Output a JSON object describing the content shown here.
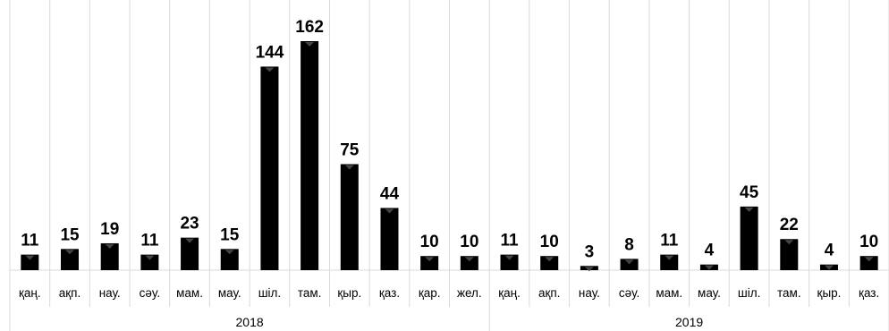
{
  "chart_data": {
    "type": "bar",
    "title": "",
    "xlabel": "",
    "ylabel": "",
    "grid": "vertical",
    "groups": [
      {
        "name": "2018",
        "categories": [
          "қаң.",
          "ақп.",
          "нау.",
          "сәу.",
          "мам.",
          "мау.",
          "шіл.",
          "там.",
          "қыр.",
          "қаз.",
          "қар.",
          "жел."
        ],
        "values": [
          11,
          15,
          19,
          11,
          23,
          15,
          144,
          162,
          75,
          44,
          10,
          10
        ]
      },
      {
        "name": "2019",
        "categories": [
          "қаң.",
          "ақп.",
          "нау.",
          "сәу.",
          "мам.",
          "мау.",
          "шіл.",
          "там.",
          "қыр.",
          "қаз."
        ],
        "values": [
          11,
          10,
          3,
          8,
          11,
          4,
          45,
          22,
          4,
          10
        ]
      }
    ],
    "colors": {
      "bar": "#000000",
      "bar_highlight": "#444444",
      "grid": "#d9d9d9",
      "text": "#000000"
    }
  }
}
